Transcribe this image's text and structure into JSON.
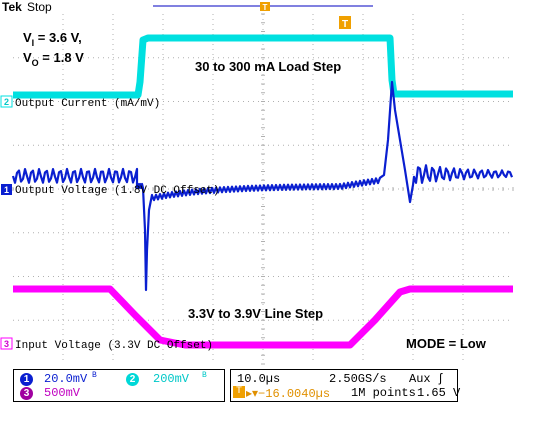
{
  "header": {
    "brand": "Tek",
    "status": "Stop"
  },
  "annotations": {
    "vin_label": "V",
    "vin_sub": "I",
    "vin_value": " = 3.6 V,",
    "vout_label": "V",
    "vout_sub": "O",
    "vout_value": " = 1.8 V",
    "load_step": "30 to 300 mA Load Step",
    "line_step": "3.3V to 3.9V Line Step",
    "mode": "MODE = Low"
  },
  "channels": [
    {
      "id": "2",
      "label": "Output Current (mA/mV)",
      "color": "#00e0e0"
    },
    {
      "id": "1",
      "label": "Output Voltage (1.8V DC Offset)",
      "color": "#0a1fd0"
    },
    {
      "id": "3",
      "label": "Input Voltage (3.3V DC Offset)",
      "color": "#ff00ff"
    }
  ],
  "trigger_marker": "T",
  "status": {
    "ch1_scale": "20.0mV",
    "ch1_bw": "B",
    "ch2_scale": "200mV",
    "ch2_bw": "B",
    "ch3_scale": "500mV",
    "timebase": "10.0µs",
    "sample_rate": "2.50GS/s",
    "trigger_source": "Aux",
    "trigger_slope": "ʃ",
    "trigger_position": "▸▾−16.0040µs",
    "record_length": "1M points",
    "trigger_level": "1.65 V"
  },
  "colors": {
    "ch1": "#0a1fd0",
    "ch2": "#00e0e0",
    "ch3": "#ff00ff",
    "trigger": "#f0a000",
    "grid": "#b0b0b0"
  }
}
